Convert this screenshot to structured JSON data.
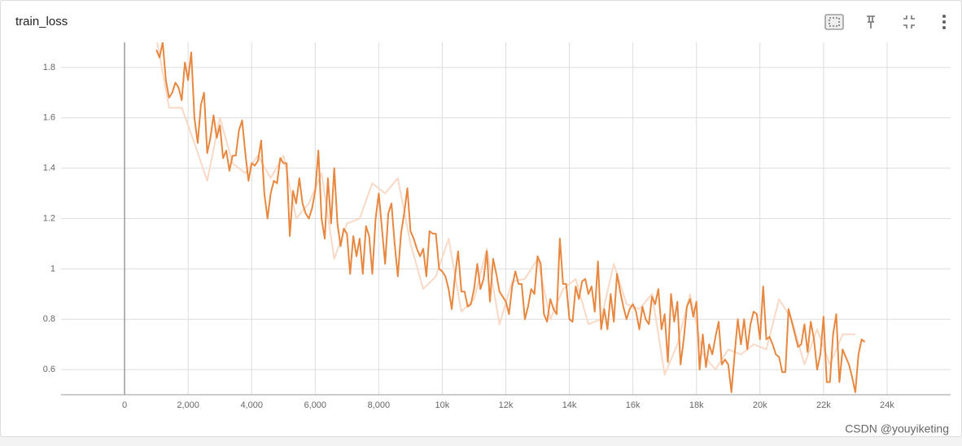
{
  "chart_data": {
    "type": "line",
    "title": "train_loss",
    "watermark": "CSDN @youyiketing",
    "xlim": [
      -2000,
      26000
    ],
    "ylim": [
      0.5,
      1.9
    ],
    "xticks": [
      0,
      {
        "value": 2000,
        "label": "2,000"
      },
      {
        "value": 4000,
        "label": "4,000"
      },
      {
        "value": 6000,
        "label": "6,000"
      },
      {
        "value": 8000,
        "label": "8,000"
      },
      {
        "value": 10000,
        "label": "10k"
      },
      {
        "value": 12000,
        "label": "12k"
      },
      {
        "value": 14000,
        "label": "14k"
      },
      {
        "value": 16000,
        "label": "16k"
      },
      {
        "value": 18000,
        "label": "18k"
      },
      {
        "value": 20000,
        "label": "20k"
      },
      {
        "value": 22000,
        "label": "22k"
      },
      {
        "value": 24000,
        "label": "24k"
      }
    ],
    "yticks": [
      0.6,
      0.8,
      1,
      1.2,
      1.4,
      1.6,
      1.8
    ],
    "grid": true,
    "series": [
      {
        "color": "#f9d9c6",
        "width": 2,
        "x": [
          1000,
          1400,
          1800,
          2200,
          2600,
          3000,
          3400,
          3800,
          4200,
          4600,
          5000,
          5400,
          5800,
          6200,
          6600,
          7000,
          7400,
          7800,
          8200,
          8600,
          9000,
          9400,
          9800,
          10200,
          10600,
          11000,
          11400,
          11800,
          12200,
          12600,
          13000,
          13400,
          13800,
          14200,
          14600,
          15000,
          15400,
          15800,
          16200,
          16600,
          17000,
          17400,
          17800,
          18200,
          18600,
          19000,
          19400,
          19800,
          20200,
          20600,
          21000,
          21400,
          21800,
          22200,
          22600,
          23000
        ],
        "values": [
          1.92,
          1.64,
          1.64,
          1.5,
          1.35,
          1.6,
          1.42,
          1.38,
          1.45,
          1.36,
          1.45,
          1.2,
          1.26,
          1.38,
          1.04,
          1.18,
          1.2,
          1.34,
          1.3,
          1.36,
          1.1,
          0.92,
          0.97,
          1.12,
          0.83,
          0.88,
          1.08,
          0.78,
          0.95,
          0.96,
          1.04,
          0.8,
          0.92,
          0.96,
          0.78,
          0.8,
          1.02,
          0.86,
          0.84,
          0.9,
          0.58,
          0.7,
          0.9,
          0.66,
          0.6,
          0.68,
          0.66,
          0.7,
          0.68,
          0.88,
          0.8,
          0.62,
          0.76,
          0.62,
          0.74,
          0.74
        ]
      },
      {
        "color": "#e8873f",
        "width": 2,
        "x": [
          1000,
          1100,
          1200,
          1300,
          1400,
          1500,
          1600,
          1700,
          1800,
          1900,
          2000,
          2100,
          2200,
          2300,
          2400,
          2500,
          2600,
          2700,
          2800,
          2900,
          3000,
          3100,
          3200,
          3300,
          3400,
          3500,
          3600,
          3700,
          3800,
          3900,
          4000,
          4100,
          4200,
          4300,
          4400,
          4500,
          4600,
          4700,
          4800,
          4900,
          5000,
          5100,
          5200,
          5300,
          5400,
          5500,
          5600,
          5700,
          5800,
          5900,
          6000,
          6100,
          6200,
          6300,
          6400,
          6500,
          6600,
          6700,
          6800,
          6900,
          7000,
          7100,
          7200,
          7300,
          7400,
          7500,
          7600,
          7700,
          7800,
          7900,
          8000,
          8100,
          8200,
          8300,
          8400,
          8500,
          8600,
          8700,
          8800,
          8900,
          9000,
          9100,
          9200,
          9300,
          9400,
          9500,
          9600,
          9700,
          9800,
          9900,
          10000,
          10100,
          10200,
          10300,
          10400,
          10500,
          10600,
          10700,
          10800,
          10900,
          11000,
          11100,
          11200,
          11300,
          11400,
          11500,
          11600,
          11700,
          11800,
          11900,
          12000,
          12100,
          12200,
          12300,
          12400,
          12500,
          12600,
          12700,
          12800,
          12900,
          13000,
          13100,
          13200,
          13300,
          13400,
          13500,
          13600,
          13700,
          13800,
          13900,
          14000,
          14100,
          14200,
          14300,
          14400,
          14500,
          14600,
          14700,
          14800,
          14900,
          15000,
          15100,
          15200,
          15300,
          15400,
          15500,
          15600,
          15700,
          15800,
          15900,
          16000,
          16100,
          16200,
          16300,
          16400,
          16500,
          16600,
          16700,
          16800,
          16900,
          17000,
          17100,
          17200,
          17300,
          17400,
          17500,
          17600,
          17700,
          17800,
          17900,
          18000,
          18100,
          18200,
          18300,
          18400,
          18500,
          18600,
          18700,
          18800,
          18900,
          19000,
          19100,
          19200,
          19300,
          19400,
          19500,
          19600,
          19700,
          19800,
          19900,
          20000,
          20100,
          20200,
          20300,
          20400,
          20500,
          20600,
          20700,
          20800,
          20900,
          21000,
          21100,
          21200,
          21300,
          21400,
          21500,
          21600,
          21700,
          21800,
          21900,
          22000,
          22100,
          22200,
          22300,
          22400,
          22500,
          22600,
          22700,
          22800,
          22900,
          23000,
          23100,
          23200,
          23300
        ],
        "values": [
          1.87,
          1.84,
          1.9,
          1.75,
          1.68,
          1.7,
          1.74,
          1.72,
          1.67,
          1.82,
          1.75,
          1.86,
          1.6,
          1.5,
          1.65,
          1.7,
          1.46,
          1.52,
          1.61,
          1.52,
          1.57,
          1.44,
          1.47,
          1.39,
          1.45,
          1.45,
          1.55,
          1.59,
          1.46,
          1.35,
          1.42,
          1.41,
          1.43,
          1.51,
          1.3,
          1.2,
          1.3,
          1.35,
          1.34,
          1.44,
          1.42,
          1.42,
          1.13,
          1.31,
          1.26,
          1.36,
          1.26,
          1.22,
          1.2,
          1.24,
          1.31,
          1.47,
          1.2,
          1.12,
          1.36,
          1.18,
          1.4,
          1.18,
          1.09,
          1.16,
          1.14,
          0.98,
          1.13,
          1.05,
          1.12,
          0.98,
          1.17,
          1.13,
          0.98,
          1.2,
          1.3,
          1.16,
          1.02,
          1.22,
          1.26,
          1.1,
          0.97,
          1.14,
          1.22,
          1.32,
          1.15,
          1.12,
          1.08,
          1.05,
          1.08,
          0.97,
          1.15,
          1.14,
          1.14,
          1.0,
          0.99,
          0.97,
          0.92,
          0.84,
          0.97,
          1.07,
          0.91,
          0.91,
          0.85,
          0.86,
          0.92,
          1.02,
          0.92,
          0.96,
          1.07,
          0.87,
          1.04,
          0.98,
          0.91,
          0.89,
          0.87,
          0.82,
          0.93,
          0.99,
          0.94,
          0.94,
          0.8,
          0.85,
          0.92,
          0.9,
          1.05,
          1.02,
          0.82,
          0.79,
          0.88,
          0.84,
          0.82,
          1.12,
          0.94,
          0.94,
          0.8,
          0.79,
          0.93,
          0.88,
          0.95,
          0.96,
          0.9,
          0.93,
          0.83,
          1.03,
          0.76,
          0.84,
          0.76,
          0.9,
          0.79,
          0.98,
          0.91,
          0.85,
          0.8,
          0.84,
          0.86,
          0.83,
          0.76,
          0.85,
          0.8,
          0.78,
          0.89,
          0.86,
          0.92,
          0.76,
          0.82,
          0.63,
          0.9,
          0.79,
          0.87,
          0.62,
          0.72,
          0.85,
          0.88,
          0.81,
          0.87,
          0.6,
          0.74,
          0.61,
          0.7,
          0.66,
          0.73,
          0.79,
          0.62,
          0.64,
          0.62,
          0.51,
          0.66,
          0.8,
          0.7,
          0.8,
          0.68,
          0.78,
          0.83,
          0.82,
          0.72,
          0.93,
          0.72,
          0.73,
          0.7,
          0.66,
          0.65,
          0.59,
          0.59,
          0.84,
          0.79,
          0.74,
          0.69,
          0.7,
          0.78,
          0.67,
          0.79,
          0.72,
          0.6,
          0.66,
          0.81,
          0.55,
          0.55,
          0.74,
          0.82,
          0.55,
          0.68,
          0.65,
          0.62,
          0.57,
          0.51,
          0.66,
          0.72,
          0.71
        ]
      }
    ]
  }
}
